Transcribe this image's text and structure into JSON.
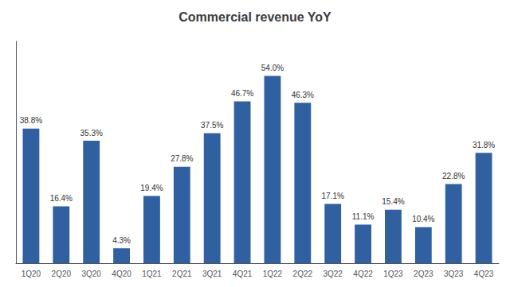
{
  "chart_data": {
    "type": "bar",
    "title": "Commercial revenue YoY",
    "categories": [
      "1Q20",
      "2Q20",
      "3Q20",
      "4Q20",
      "1Q21",
      "2Q21",
      "3Q21",
      "4Q21",
      "1Q22",
      "2Q22",
      "3Q22",
      "4Q22",
      "1Q23",
      "2Q23",
      "3Q23",
      "4Q23"
    ],
    "values": [
      38.8,
      16.4,
      35.3,
      4.3,
      19.4,
      27.8,
      37.5,
      46.7,
      54.0,
      46.3,
      17.1,
      11.1,
      15.4,
      10.4,
      22.8,
      31.8
    ],
    "value_labels": [
      "38.8%",
      "16.4%",
      "35.3%",
      "4.3%",
      "19.4%",
      "27.8%",
      "37.5%",
      "46.7%",
      "54.0%",
      "46.3%",
      "17.1%",
      "11.1%",
      "15.4%",
      "10.4%",
      "22.8%",
      "31.8%"
    ],
    "color": "#3060A0",
    "ylim": [
      0,
      64
    ],
    "grid": false,
    "data_labels": true,
    "tick_labels": "x"
  }
}
